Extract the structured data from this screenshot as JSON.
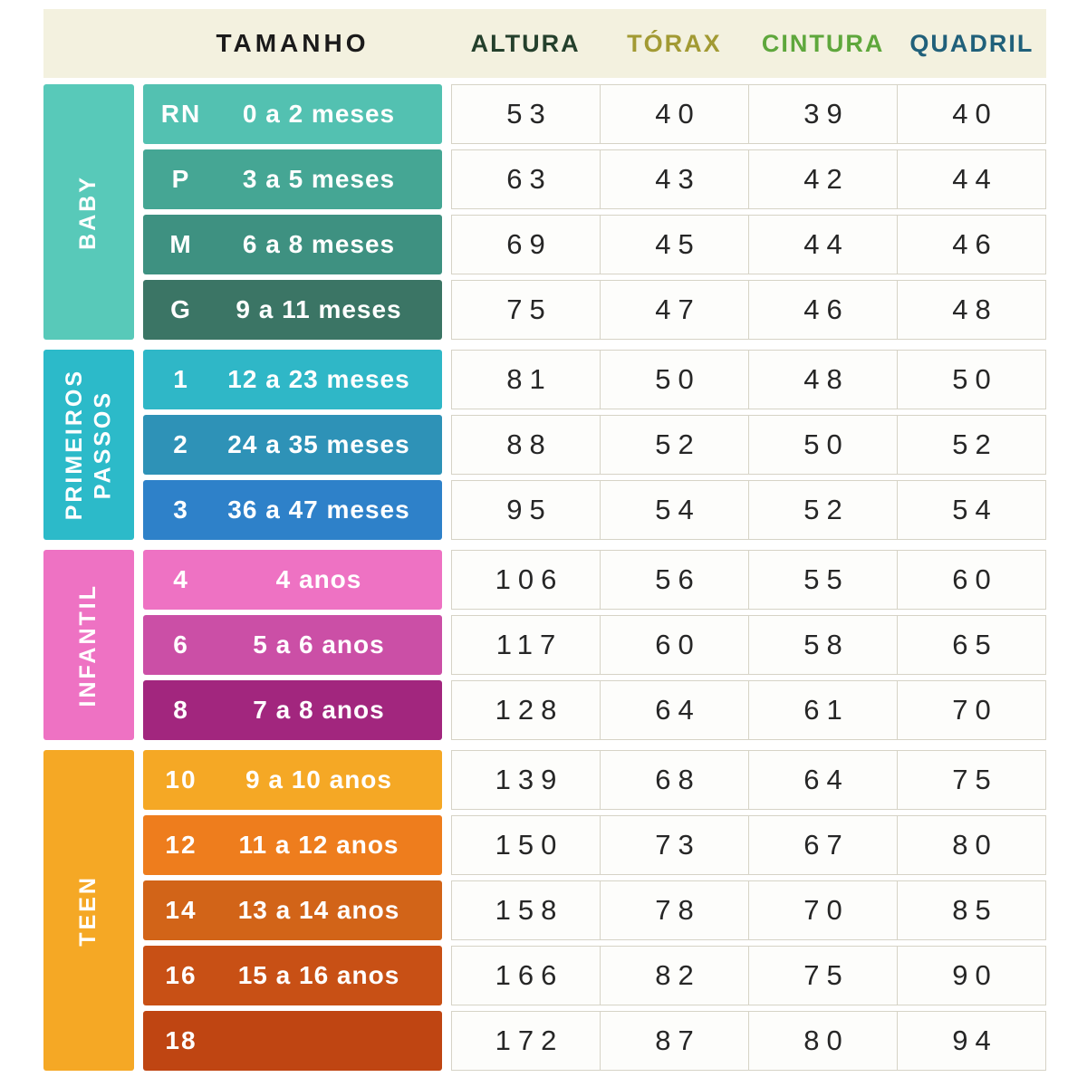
{
  "header": {
    "bg_color": "#F3F1DF",
    "tamanho_label": "TAMANHO",
    "tamanho_color": "#1B1B1B",
    "columns": [
      {
        "label": "ALTURA",
        "color": "#24402C"
      },
      {
        "label": "TÓRAX",
        "color": "#A29A33"
      },
      {
        "label": "CINTURA",
        "color": "#5EA73C"
      },
      {
        "label": "QUADRIL",
        "color": "#20607A"
      }
    ]
  },
  "chart_data": {
    "type": "table",
    "columns": [
      "TAMANHO",
      "ALTURA",
      "TÓRAX",
      "CINTURA",
      "QUADRIL"
    ],
    "groups": [
      {
        "name": "BABY",
        "sidebar_color": "#58C9B9",
        "rows": [
          {
            "size": "RN",
            "age": "0 a 2 meses",
            "color": "#53C1B1",
            "values": [
              53,
              40,
              39,
              40
            ]
          },
          {
            "size": "P",
            "age": "3 a 5 meses",
            "color": "#45A694",
            "values": [
              63,
              43,
              42,
              44
            ]
          },
          {
            "size": "M",
            "age": "6 a 8 meses",
            "color": "#3E9181",
            "values": [
              69,
              45,
              44,
              46
            ]
          },
          {
            "size": "G",
            "age": "9 a 11 meses",
            "color": "#3B7565",
            "values": [
              75,
              47,
              46,
              48
            ]
          }
        ]
      },
      {
        "name": "PRIMEIROS\nPASSOS",
        "sidebar_color": "#2CBAC9",
        "rows": [
          {
            "size": "1",
            "age": "12 a 23 meses",
            "color": "#2FB7C7",
            "values": [
              81,
              50,
              48,
              50
            ]
          },
          {
            "size": "2",
            "age": "24 a 35 meses",
            "color": "#2E92B7",
            "values": [
              88,
              52,
              50,
              52
            ]
          },
          {
            "size": "3",
            "age": "36 a 47 meses",
            "color": "#2E81C9",
            "values": [
              95,
              54,
              52,
              54
            ]
          }
        ]
      },
      {
        "name": "INFANTIL",
        "sidebar_color": "#EE72C3",
        "rows": [
          {
            "size": "4",
            "age": "4 anos",
            "color": "#EE72C3",
            "values": [
              106,
              56,
              55,
              60
            ]
          },
          {
            "size": "6",
            "age": "5 a 6 anos",
            "color": "#CB4FA6",
            "values": [
              117,
              60,
              58,
              65
            ]
          },
          {
            "size": "8",
            "age": "7 a 8 anos",
            "color": "#A2267E",
            "values": [
              128,
              64,
              61,
              70
            ]
          }
        ]
      },
      {
        "name": "TEEN",
        "sidebar_color": "#F5A825",
        "rows": [
          {
            "size": "10",
            "age": "9 a 10 anos",
            "color": "#F5A825",
            "values": [
              139,
              68,
              64,
              75
            ]
          },
          {
            "size": "12",
            "age": "11 a 12 anos",
            "color": "#EE7D1D",
            "values": [
              150,
              73,
              67,
              80
            ]
          },
          {
            "size": "14",
            "age": "13 a 14 anos",
            "color": "#D26418",
            "values": [
              158,
              78,
              70,
              85
            ]
          },
          {
            "size": "16",
            "age": "15 a 16 anos",
            "color": "#C85015",
            "values": [
              166,
              82,
              75,
              90
            ]
          },
          {
            "size": "18",
            "age": "",
            "color": "#BF4512",
            "values": [
              172,
              87,
              80,
              94
            ]
          }
        ]
      }
    ]
  }
}
